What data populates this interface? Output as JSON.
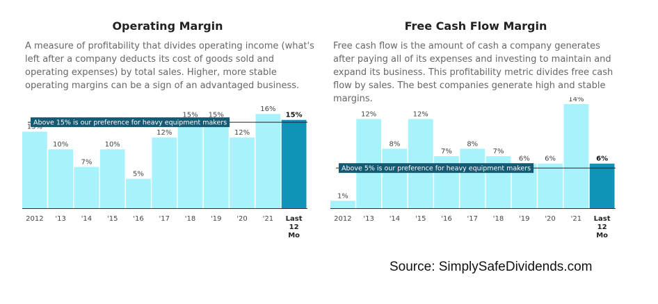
{
  "charts": [
    {
      "title": "Operating Margin",
      "description": "A measure of profitability that divides operating income (what's left after a company deducts its cost of goods sold and operating expenses) by total sales. Higher, more stable operating margins can be a sign of an advantaged business."
    },
    {
      "title": "Free Cash Flow Margin",
      "description": "Free cash flow is the amount of cash a company generates after paying all of its expenses and investing to maintain and expand its business. This profitability metric divides free cash flow by sales. The best companies generate high and stable margins."
    }
  ],
  "source": "Source: SimplySafeDividends.com",
  "colors": {
    "bar": "#a8f2fc",
    "bar_highlight": "#0f93b7",
    "threshold_label_bg": "#145a72"
  },
  "chart_data": [
    {
      "type": "bar",
      "title": "Operating Margin",
      "categories": [
        "2012",
        "'13",
        "'14",
        "'15",
        "'16",
        "'17",
        "'18",
        "'19",
        "'20",
        "'21",
        "Last 12 Mo"
      ],
      "values": [
        13,
        10,
        7,
        10,
        5,
        12,
        15,
        15,
        12,
        16,
        15
      ],
      "data_labels": [
        "13%",
        "10%",
        "7%",
        "10%",
        "5%",
        "12%",
        "15%",
        "15%",
        "12%",
        "16%",
        "15%"
      ],
      "highlight_index": 10,
      "threshold": {
        "value": 14.6,
        "label": "Above 15% is our preference for heavy equipment makers"
      },
      "ylim": [
        0,
        16.5
      ],
      "grid": false,
      "legend": "none"
    },
    {
      "type": "bar",
      "title": "Free Cash Flow Margin",
      "categories": [
        "2012",
        "'13",
        "'14",
        "'15",
        "'16",
        "'17",
        "'18",
        "'19",
        "'20",
        "'21",
        "Last 12 Mo"
      ],
      "values": [
        1,
        12,
        8,
        12,
        7,
        8,
        7,
        6,
        6,
        14,
        6
      ],
      "data_labels": [
        "1%",
        "12%",
        "8%",
        "12%",
        "7%",
        "8%",
        "7%",
        "6%",
        "6%",
        "14%",
        "6%"
      ],
      "highlight_index": 10,
      "threshold": {
        "value": 5.4,
        "label": "Above 5% is our preference for heavy equipment makers"
      },
      "ylim": [
        0,
        14
      ],
      "grid": false,
      "legend": "none"
    }
  ]
}
